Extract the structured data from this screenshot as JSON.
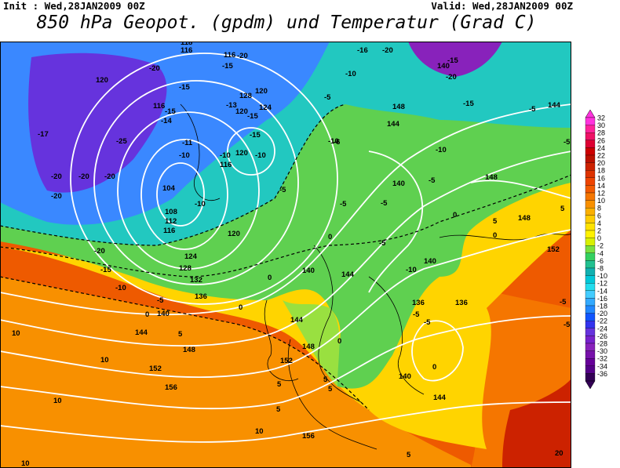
{
  "header": {
    "init": "Init : Wed,28JAN2009 00Z",
    "valid": "Valid: Wed,28JAN2009 00Z",
    "title": "850 hPa Geopot. (gpdm) und Temperatur (Grad C)"
  },
  "colorbar": {
    "labels": [
      "32",
      "30",
      "28",
      "26",
      "24",
      "22",
      "20",
      "18",
      "16",
      "14",
      "12",
      "10",
      "8",
      "6",
      "4",
      "2",
      "0",
      "-2",
      "-4",
      "-6",
      "-8",
      "-10",
      "-12",
      "-14",
      "-16",
      "-18",
      "-20",
      "-22",
      "-24",
      "-26",
      "-28",
      "-30",
      "-32",
      "-34",
      "-36"
    ],
    "colors": [
      "#ff33dd",
      "#ff2299",
      "#ee1166",
      "#dd0033",
      "#cc0000",
      "#bb1100",
      "#cc2200",
      "#dd3300",
      "#ee4400",
      "#f25a00",
      "#f57600",
      "#f89000",
      "#fbb000",
      "#ffcc00",
      "#ffe200",
      "#fff200",
      "#d8f000",
      "#78e040",
      "#33d060",
      "#22c090",
      "#11b0b0",
      "#00c8d8",
      "#22ddee",
      "#44ccff",
      "#33aaff",
      "#2288ff",
      "#1155ff",
      "#3333ee",
      "#6633dd",
      "#7722cc",
      "#8822bb",
      "#7711aa",
      "#660099",
      "#550088",
      "#330055"
    ]
  },
  "map": {
    "geopotential_labels": [
      "104",
      "108",
      "112",
      "116",
      "116",
      "116",
      "116",
      "116",
      "118",
      "120",
      "120",
      "120",
      "120",
      "120",
      "124",
      "124",
      "128",
      "128",
      "132",
      "136",
      "136",
      "136",
      "140",
      "140",
      "140",
      "140",
      "140",
      "140",
      "144",
      "144",
      "144",
      "144",
      "144",
      "144",
      "148",
      "148",
      "148",
      "148",
      "148",
      "152",
      "152",
      "152",
      "156",
      "156"
    ],
    "temperature_labels": [
      "-25",
      "-20",
      "-20",
      "-20",
      "-20",
      "-20",
      "-20",
      "-20",
      "-20",
      "-20",
      "-17",
      "-16",
      "-15",
      "-15",
      "-15",
      "-15",
      "-15",
      "-15",
      "-15",
      "-15",
      "-14",
      "-13",
      "-11",
      "-10",
      "-10",
      "-10",
      "-10",
      "-10",
      "-10",
      "-10",
      "-10",
      "-10",
      "-5",
      "-5",
      "-5",
      "-5",
      "-5",
      "-5",
      "-5",
      "-5",
      "-5",
      "-5",
      "-5",
      "-5",
      "-5",
      "-6",
      "0",
      "0",
      "0",
      "0",
      "0",
      "0",
      "0",
      "0",
      "5",
      "5",
      "5",
      "5",
      "5",
      "5",
      "5",
      "5",
      "10",
      "10",
      "10",
      "10",
      "10",
      "20"
    ]
  }
}
